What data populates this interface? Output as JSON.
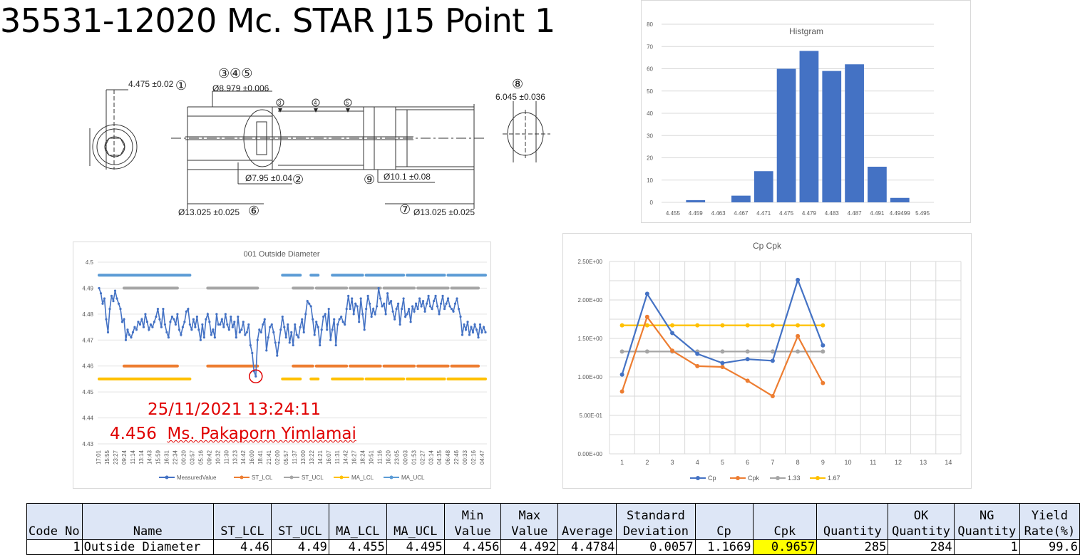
{
  "page_title": "35531-12020 Mc. STAR J15 Point 1",
  "drawing": {
    "dim1": "4.475 ±0.02",
    "dim1_num": "①",
    "dim345_nums": "③④⑤",
    "dim345": "Ø8.979 ±0.006",
    "dim8_num": "⑧",
    "dim8": "6.045 ±0.036",
    "dim2": "Ø7.95 ±0.04",
    "dim2_num": "②",
    "dim9_num": "⑨",
    "dim9": "Ø10.1 ±0.08",
    "dim6": "Ø13.025 ±0.025",
    "dim6_num": "⑥",
    "dim7_num": "⑦",
    "dim7": "Ø13.025 ±0.025",
    "tri3": "3",
    "tri4": "4",
    "tri5": "5"
  },
  "annotation": {
    "datetime": "25/11/2021 13:24:11",
    "value": "4.456",
    "operator": "Ms. Pakaporn Yimlamai"
  },
  "chart_data": [
    {
      "type": "bar",
      "title": "Histgram",
      "categories": [
        "4.455",
        "4.459",
        "4.463",
        "4.467",
        "4.471",
        "4.475",
        "4.479",
        "4.483",
        "4.487",
        "4.491",
        "4.49499",
        "5.495"
      ],
      "values": [
        0,
        1,
        0,
        3,
        14,
        60,
        68,
        59,
        62,
        16,
        2,
        0
      ],
      "ylim": [
        0,
        80
      ],
      "yticks": [
        "0",
        "10",
        "20",
        "30",
        "40",
        "50",
        "60",
        "70",
        "80"
      ],
      "color": "#4472c4"
    },
    {
      "type": "line",
      "title": "001  Outside Diameter",
      "ylim": [
        4.43,
        4.5
      ],
      "yticks": [
        "4.43",
        "4.44",
        "4.45",
        "4.46",
        "4.47",
        "4.48",
        "4.49",
        "4.5"
      ],
      "x_tick_labels": [
        "17:01",
        "15:55",
        "23:27",
        "09:24",
        "11:14",
        "13:14",
        "14:43",
        "15:59",
        "16:31",
        "22:34",
        "00:20",
        "03:57",
        "05:16",
        "09:42",
        "10:32",
        "11:30",
        "13:23",
        "14:42",
        "16:00",
        "18:41",
        "21:41",
        "02:00",
        "05:57",
        "11:37",
        "13:00",
        "13:22",
        "14:21",
        "16:07",
        "11:31",
        "14:42",
        "16:27",
        "18:24",
        "10:51",
        "11:16",
        "16:20",
        "23:05",
        "00:03",
        "01:53",
        "02:27",
        "03:14",
        "04:35",
        "06:48",
        "22:46",
        "00:33",
        "02:16",
        "04:47"
      ],
      "series_names": [
        "MeasuredValue",
        "ST_LCL",
        "ST_UCL",
        "MA_LCL",
        "MA_UCL"
      ],
      "series_colors": [
        "#4472c4",
        "#ed7d31",
        "#a5a5a5",
        "#ffc000",
        "#5b9bd5"
      ],
      "limits": {
        "ST_LCL": 4.46,
        "ST_UCL": 4.49,
        "MA_LCL": 4.455,
        "MA_UCL": 4.495
      },
      "measured_values": [
        4.49,
        4.488,
        4.484,
        4.486,
        4.478,
        4.473,
        4.482,
        4.487,
        4.485,
        4.489,
        4.486,
        4.484,
        4.482,
        4.477,
        4.478,
        4.47,
        4.474,
        4.472,
        4.471,
        4.473,
        4.475,
        4.474,
        4.477,
        4.476,
        4.478,
        4.475,
        4.48,
        4.477,
        4.474,
        4.476,
        4.475,
        4.477,
        4.479,
        4.482,
        4.478,
        4.475,
        4.482,
        4.476,
        4.473,
        4.471,
        4.477,
        4.479,
        4.478,
        4.476,
        4.48,
        4.474,
        4.472,
        4.475,
        4.477,
        4.481,
        4.482,
        4.476,
        4.474,
        4.478,
        4.475,
        4.479,
        4.474,
        4.47,
        4.476,
        4.471,
        4.478,
        4.48,
        4.477,
        4.472,
        4.474,
        4.471,
        4.48,
        4.476,
        4.476,
        4.478,
        4.475,
        4.48,
        4.476,
        4.474,
        4.479,
        4.475,
        4.477,
        4.471,
        4.479,
        4.473,
        4.474,
        4.477,
        4.472,
        4.473,
        4.476,
        4.468,
        4.465,
        4.458,
        4.456,
        4.47,
        4.474,
        4.473,
        4.476,
        4.478,
        4.466,
        4.471,
        4.475,
        4.476,
        4.473,
        4.469,
        4.464,
        4.469,
        4.474,
        4.479,
        4.475,
        4.471,
        4.476,
        4.469,
        4.473,
        4.468,
        4.476,
        4.472,
        4.471,
        4.475,
        4.478,
        4.473,
        4.48,
        4.485,
        4.484,
        4.483,
        4.478,
        4.472,
        4.477,
        4.475,
        4.468,
        4.474,
        4.479,
        4.48,
        4.474,
        4.482,
        4.47,
        4.474,
        4.478,
        4.468,
        4.476,
        4.478,
        4.479,
        4.477,
        4.476,
        4.482,
        4.487,
        4.482,
        4.486,
        4.48,
        4.484,
        4.483,
        4.477,
        4.486,
        4.48,
        4.474,
        4.482,
        4.487,
        4.484,
        4.479,
        4.482,
        4.48,
        4.483,
        4.49,
        4.486,
        4.483,
        4.484,
        4.48,
        4.488,
        4.484,
        4.485,
        4.481,
        4.478,
        4.482,
        4.484,
        4.476,
        4.482,
        4.486,
        4.479,
        4.48,
        4.482,
        4.477,
        4.483,
        4.481,
        4.484,
        4.482,
        4.486,
        4.483,
        4.485,
        4.481,
        4.484,
        4.487,
        4.483,
        4.482,
        4.485,
        4.487,
        4.483,
        4.48,
        4.484,
        4.487,
        4.482,
        4.484,
        4.486,
        4.483,
        4.482,
        4.481,
        4.484,
        4.486,
        4.482,
        4.479,
        4.472,
        4.476,
        4.474,
        4.477,
        4.472,
        4.475,
        4.473,
        4.476,
        4.474,
        4.471,
        4.476,
        4.473,
        4.475,
        4.473
      ],
      "ma_gap_ranges": [
        [
          52,
          102
        ],
        [
          114,
          118
        ],
        [
          124,
          130
        ]
      ]
    },
    {
      "type": "line",
      "title": "Cp Cpk",
      "x": [
        1,
        2,
        3,
        4,
        5,
        6,
        7,
        8,
        9
      ],
      "x_ticks": [
        "1",
        "2",
        "3",
        "4",
        "5",
        "6",
        "7",
        "8",
        "9",
        "10",
        "11",
        "12",
        "13",
        "14"
      ],
      "ylim": [
        0,
        2.5
      ],
      "yticks": [
        "0.00E+00",
        "5.00E-01",
        "1.00E+00",
        "1.50E+00",
        "2.00E+00",
        "2.50E+00"
      ],
      "series": [
        {
          "name": "Cp",
          "values": [
            1.03,
            2.08,
            1.57,
            1.3,
            1.18,
            1.23,
            1.21,
            2.26,
            1.41
          ],
          "color": "#4472c4"
        },
        {
          "name": "Cpk",
          "values": [
            0.81,
            1.78,
            1.34,
            1.14,
            1.13,
            0.95,
            0.75,
            1.53,
            0.92
          ],
          "color": "#ed7d31"
        },
        {
          "name": "1.33",
          "values": [
            1.33,
            1.33,
            1.33,
            1.33,
            1.33,
            1.33,
            1.33,
            1.33,
            1.33
          ],
          "color": "#a5a5a5"
        },
        {
          "name": "1.67",
          "values": [
            1.67,
            1.67,
            1.67,
            1.67,
            1.67,
            1.67,
            1.67,
            1.67,
            1.67
          ],
          "color": "#ffc000"
        }
      ]
    },
    {
      "type": "table",
      "headers": [
        "Code No",
        "Name",
        "ST_LCL",
        "ST_UCL",
        "MA_LCL",
        "MA_UCL",
        "Min\nValue",
        "Max\nValue",
        "Average",
        "Standard\nDeviation",
        "Cp",
        "Cpk",
        "Quantity",
        "OK\nQuantity",
        "NG\nQuantity",
        "Yield\nRate(%)"
      ],
      "rows": [
        [
          "1",
          "Outside Diameter",
          "4.46",
          "4.49",
          "4.455",
          "4.495",
          "4.456",
          "4.492",
          "4.4784",
          "0.0057",
          "1.1669",
          "0.9657",
          "285",
          "284",
          "1",
          "99.6"
        ]
      ],
      "highlight_color": "#ffff00"
    }
  ]
}
